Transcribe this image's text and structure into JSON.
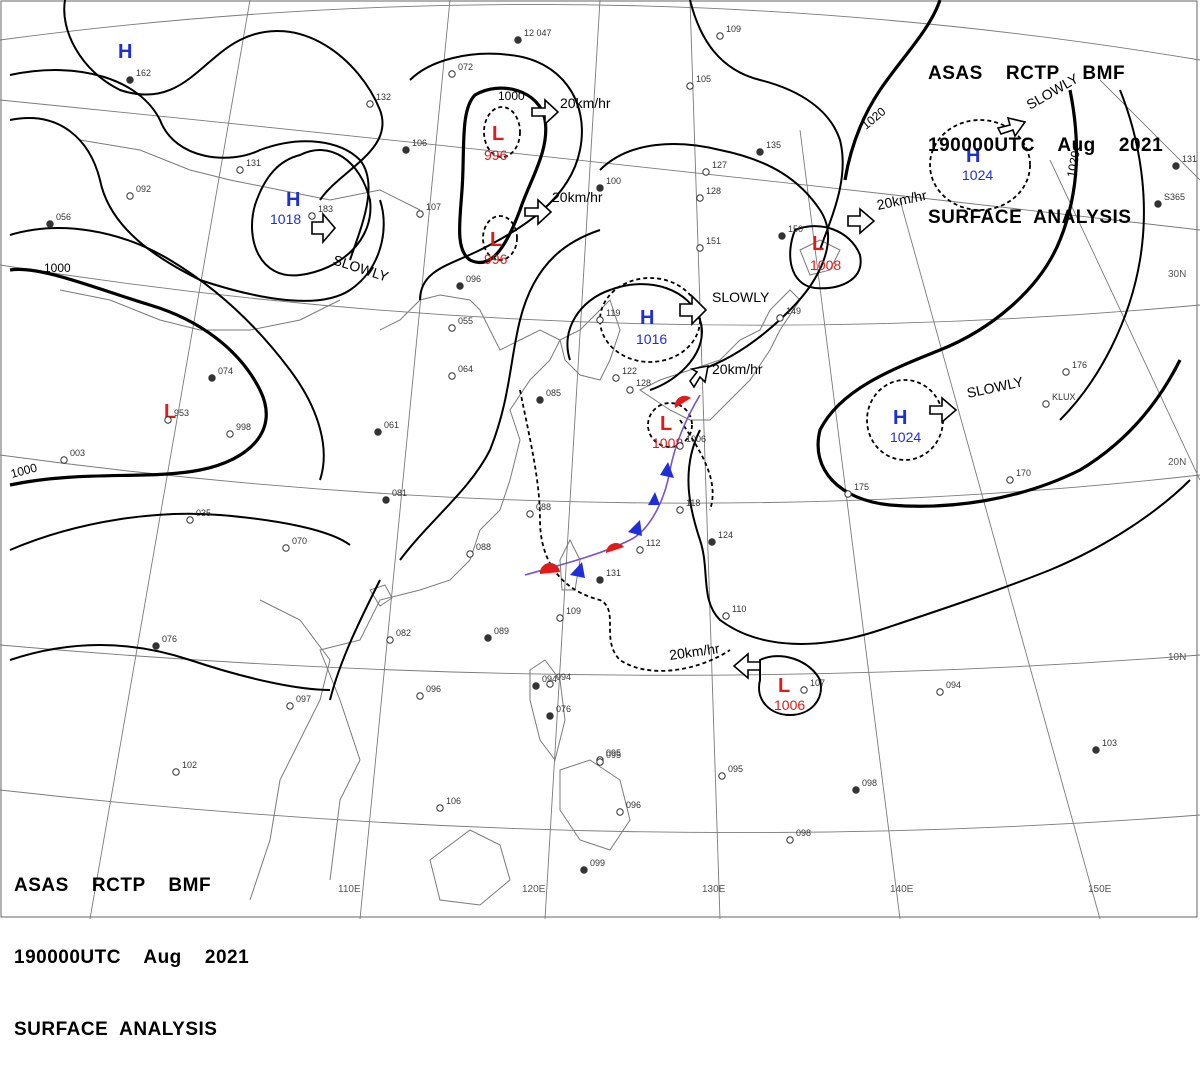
{
  "header": {
    "line1": "ASAS    RCTP    BMF",
    "line2": "190000UTC    Aug    2021",
    "line3": "SURFACE  ANALYSIS"
  },
  "lat_labels": [
    "30N",
    "20N",
    "10N"
  ],
  "lon_labels": [
    "110E",
    "120E",
    "130E",
    "140E",
    "150E"
  ],
  "isobar_labels": [
    "1000",
    "1000",
    "1000",
    "1020",
    "1020"
  ],
  "pressure_systems": [
    {
      "kind": "H",
      "value": ""
    },
    {
      "kind": "H",
      "value": "1018"
    },
    {
      "kind": "L",
      "value": "996"
    },
    {
      "kind": "L",
      "value": "996"
    },
    {
      "kind": "H",
      "value": "1016"
    },
    {
      "kind": "L",
      "value": "1008"
    },
    {
      "kind": "L",
      "value": "1008"
    },
    {
      "kind": "H",
      "value": "1024"
    },
    {
      "kind": "H",
      "value": "1024"
    },
    {
      "kind": "L",
      "value": ""
    },
    {
      "kind": "L",
      "value": "1006"
    }
  ],
  "movements": [
    "20km/hr",
    "20km/hr",
    "SLOWLY",
    "SLOWLY",
    "20km/hr",
    "20km/hr",
    "SLOWLY",
    "20km/hr"
  ],
  "stations": [
    {
      "t": "12 047"
    },
    {
      "t": "072"
    },
    {
      "t": "132"
    },
    {
      "t": "106"
    },
    {
      "t": "131"
    },
    {
      "t": "092"
    },
    {
      "t": "056"
    },
    {
      "t": "107"
    },
    {
      "t": "183"
    },
    {
      "t": "096"
    },
    {
      "t": "055"
    },
    {
      "t": "064"
    },
    {
      "t": "074"
    },
    {
      "t": "953"
    },
    {
      "t": "998"
    },
    {
      "t": "061"
    },
    {
      "t": "003"
    },
    {
      "t": "035"
    },
    {
      "t": "081"
    },
    {
      "t": "070"
    },
    {
      "t": "088"
    },
    {
      "t": "085"
    },
    {
      "t": "088"
    },
    {
      "t": "082"
    },
    {
      "t": "089"
    },
    {
      "t": "096"
    },
    {
      "t": "097"
    },
    {
      "t": "076"
    },
    {
      "t": "102"
    },
    {
      "t": "106"
    },
    {
      "t": "099"
    },
    {
      "t": "096"
    },
    {
      "t": "094"
    },
    {
      "t": "076"
    },
    {
      "t": "095"
    },
    {
      "t": "109"
    },
    {
      "t": "131"
    },
    {
      "t": "112"
    },
    {
      "t": "118"
    },
    {
      "t": "124"
    },
    {
      "t": "110"
    },
    {
      "t": "095"
    },
    {
      "t": "098"
    },
    {
      "t": "098"
    },
    {
      "t": "094"
    },
    {
      "t": "103"
    },
    {
      "t": "175"
    },
    {
      "t": "170"
    },
    {
      "t": "131"
    },
    {
      "t": "149"
    },
    {
      "t": "151"
    },
    {
      "t": "150"
    },
    {
      "t": "128"
    },
    {
      "t": "127"
    },
    {
      "t": "135"
    },
    {
      "t": "105"
    },
    {
      "t": "109"
    },
    {
      "t": "100"
    },
    {
      "t": "122"
    },
    {
      "t": "119"
    },
    {
      "t": "162"
    },
    {
      "t": "107"
    },
    {
      "t": "095"
    },
    {
      "t": "094"
    },
    {
      "t": "128"
    },
    {
      "t": "KLUX"
    },
    {
      "t": "S365"
    },
    {
      "t": "176"
    },
    {
      "t": "1006"
    }
  ]
}
